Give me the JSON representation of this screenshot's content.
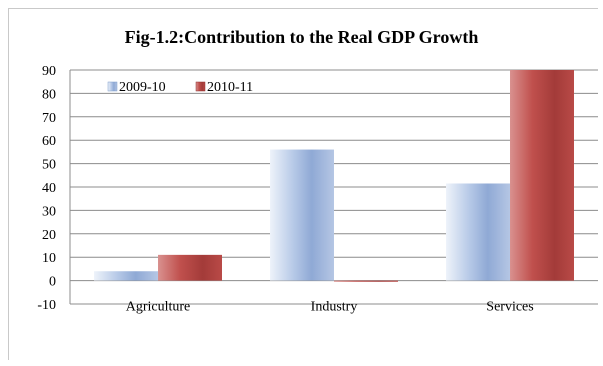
{
  "chart_data": {
    "type": "bar",
    "title": "Fig-1.2:Contribution to the Real GDP Growth",
    "categories": [
      "Agriculture",
      "Industry",
      "Services"
    ],
    "series": [
      {
        "name": "2009-10",
        "values": [
          4,
          56,
          41.5
        ],
        "color": "#9bb6dd"
      },
      {
        "name": "2010-11",
        "values": [
          11,
          -0.5,
          90
        ],
        "color": "#c0504d"
      }
    ],
    "ylim": [
      -10,
      90
    ],
    "yticks": [
      -10,
      0,
      10,
      20,
      30,
      40,
      50,
      60,
      70,
      80,
      90
    ],
    "grid": true,
    "legend": "top-left",
    "xlabel": "",
    "ylabel": ""
  }
}
